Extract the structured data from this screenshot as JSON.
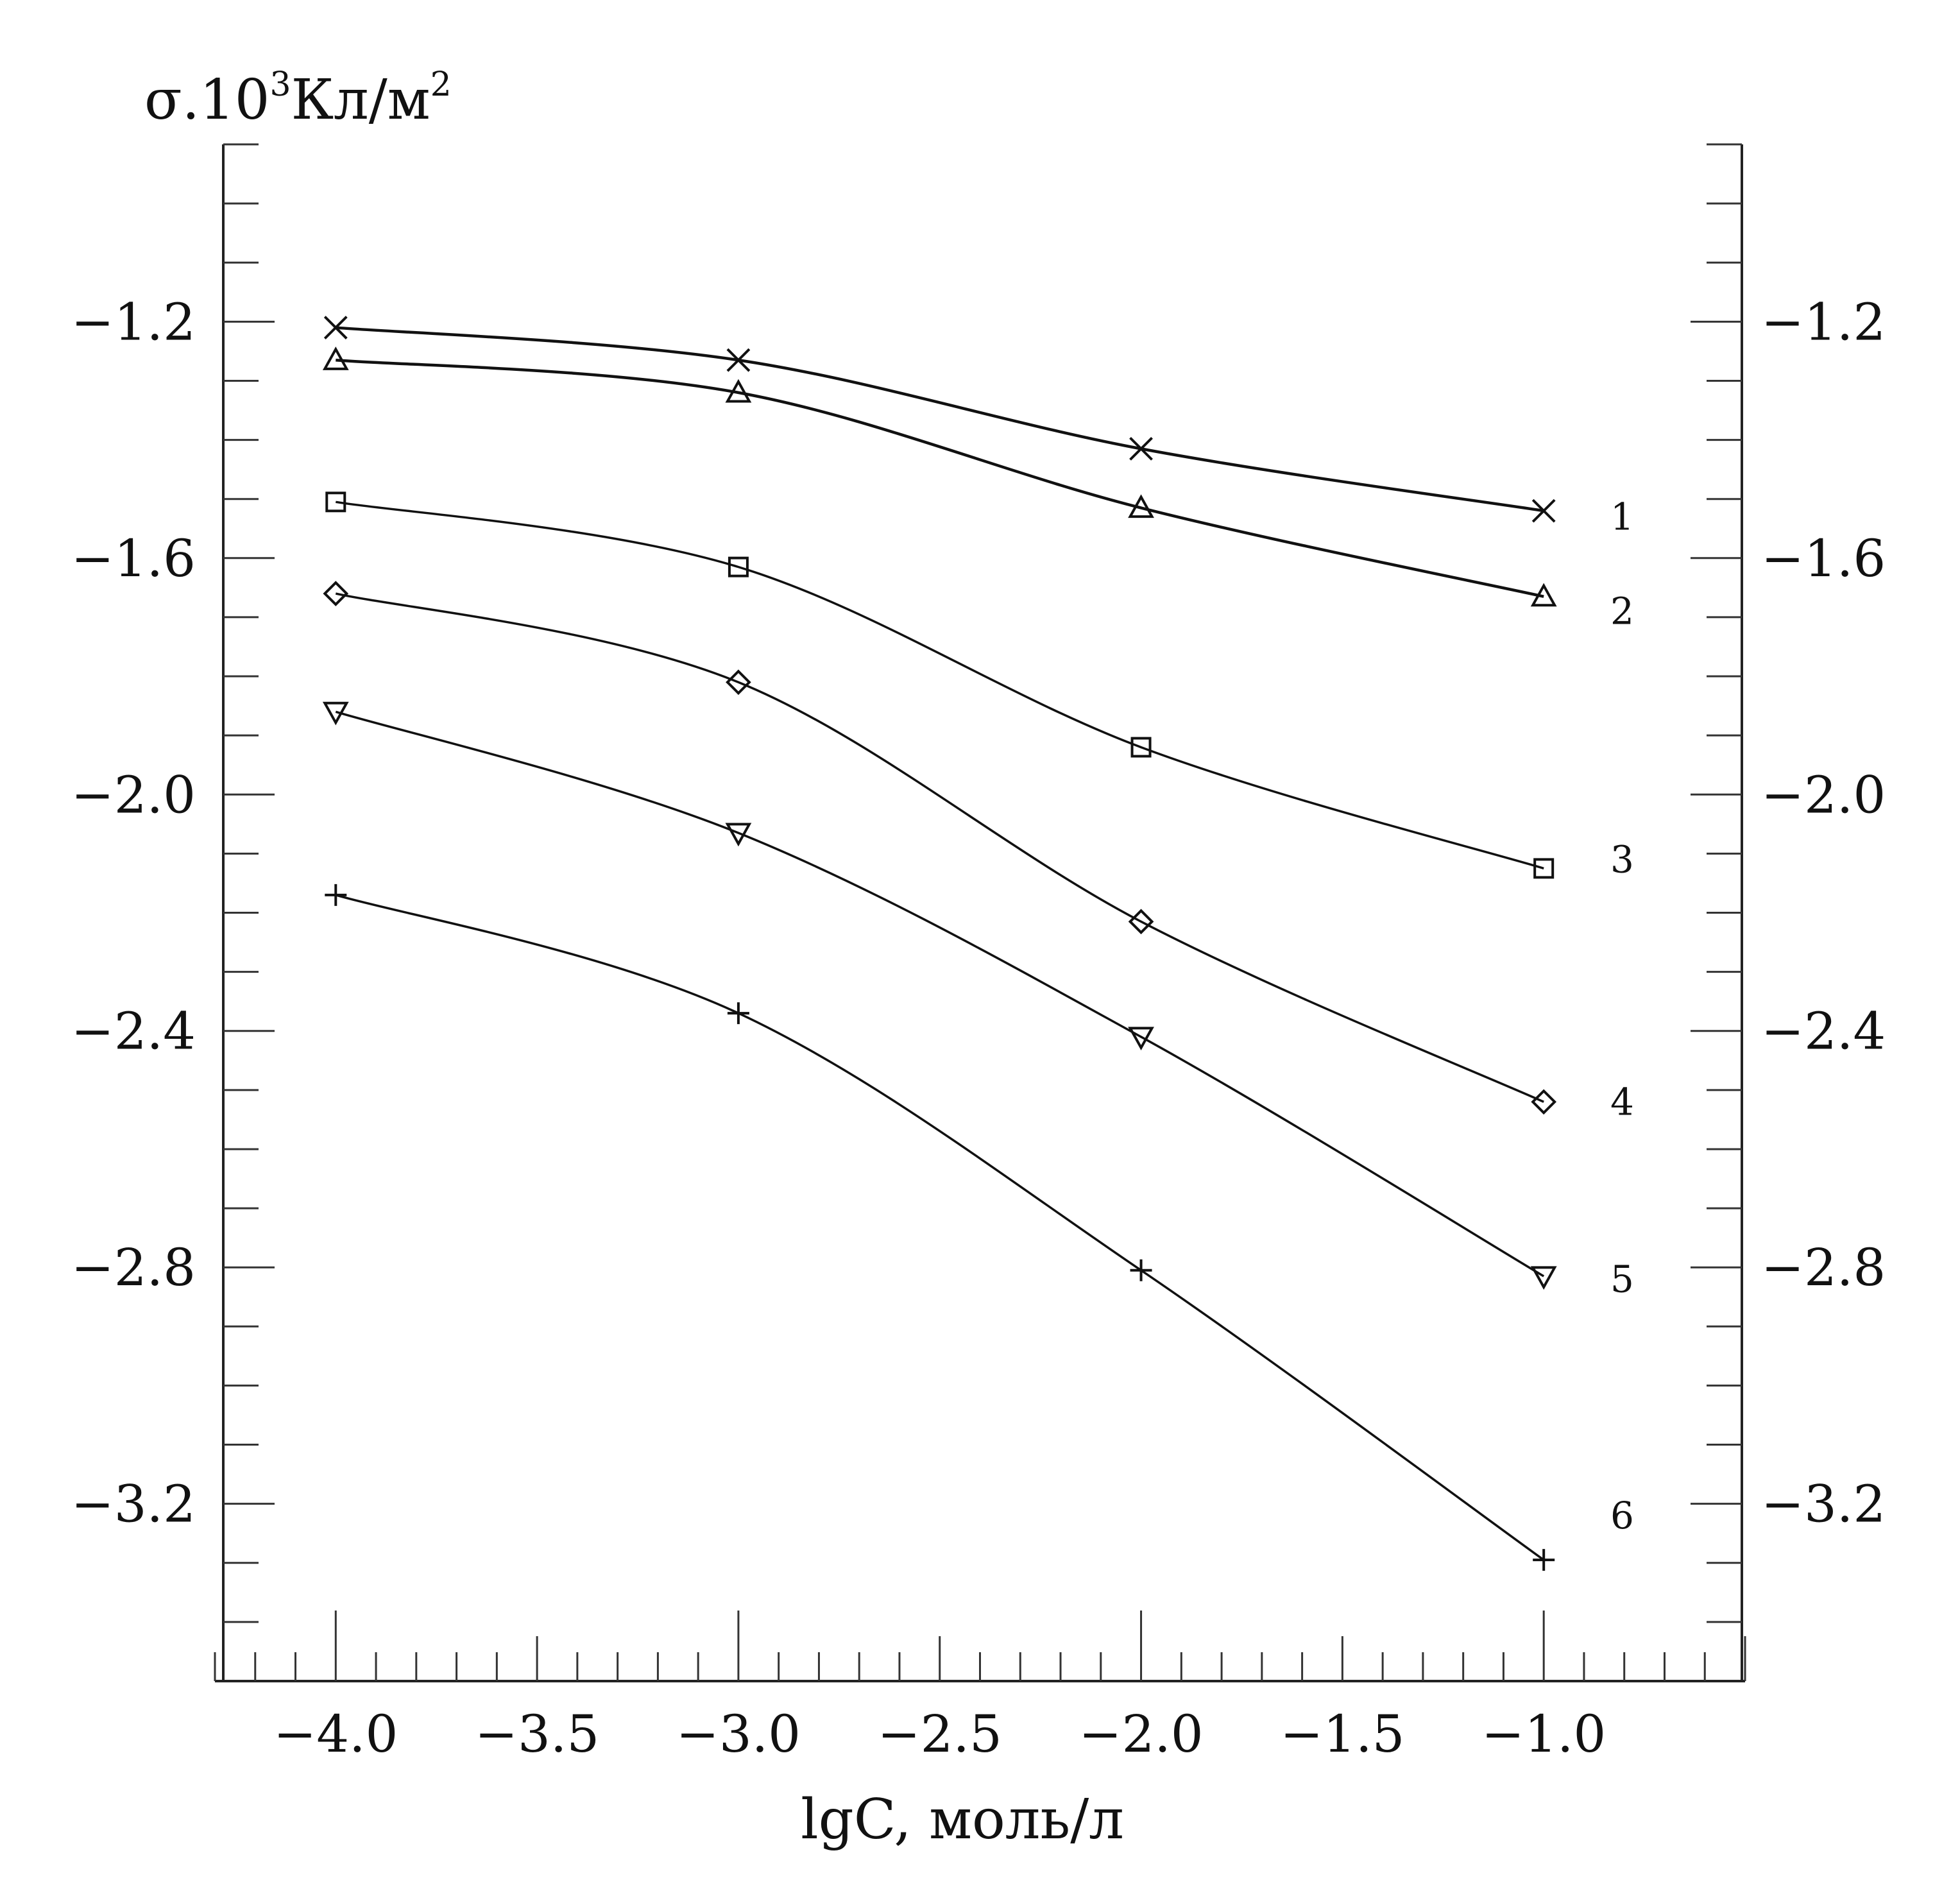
{
  "chart_data": {
    "type": "line",
    "ylabel_main": "σ.10",
    "ylabel_exp": "3",
    "ylabel_unit": "Кл/м",
    "ylabel_unit_exp": "2",
    "xlabel": "lgC,  моль/л",
    "xlim": [
      -4.3,
      -0.5
    ],
    "ylim": [
      -3.5,
      -0.9
    ],
    "x_ticks": [
      {
        "value": -4.0,
        "label": "−4.0"
      },
      {
        "value": -3.5,
        "label": "−3.5"
      },
      {
        "value": -3.0,
        "label": "−3.0"
      },
      {
        "value": -2.5,
        "label": "−2.5"
      },
      {
        "value": -2.0,
        "label": "−2.0"
      },
      {
        "value": -1.5,
        "label": "−1.5"
      },
      {
        "value": -1.0,
        "label": "−1.0"
      }
    ],
    "y_ticks_left": [
      {
        "value": -1.2,
        "label": "−1.2"
      },
      {
        "value": -1.6,
        "label": "−1.6"
      },
      {
        "value": -2.0,
        "label": "−2.0"
      },
      {
        "value": -2.4,
        "label": "−2.4"
      },
      {
        "value": -2.8,
        "label": "−2.8"
      },
      {
        "value": -3.2,
        "label": "−3.2"
      }
    ],
    "y_ticks_right": [
      {
        "value": -1.2,
        "label": "−1.2"
      },
      {
        "value": -1.6,
        "label": "−1.6"
      },
      {
        "value": -2.0,
        "label": "−2.0"
      },
      {
        "value": -2.4,
        "label": "−2.4"
      },
      {
        "value": -2.8,
        "label": "−2.8"
      },
      {
        "value": -3.2,
        "label": "−3.2"
      }
    ],
    "x": [
      -4.0,
      -3.0,
      -2.0,
      -1.0
    ],
    "series": [
      {
        "label": "1",
        "marker": "x",
        "values": [
          -1.21,
          -1.265,
          -1.415,
          -1.52
        ],
        "label_y": -1.53
      },
      {
        "label": "2",
        "marker": "triangle-up",
        "values": [
          -1.265,
          -1.32,
          -1.515,
          -1.665
        ],
        "label_y": -1.69
      },
      {
        "label": "3",
        "marker": "square",
        "values": [
          -1.505,
          -1.615,
          -1.92,
          -2.125
        ],
        "label_y": -2.11
      },
      {
        "label": "4",
        "marker": "diamond",
        "values": [
          -1.66,
          -1.81,
          -2.215,
          -2.52
        ],
        "label_y": -2.52
      },
      {
        "label": "5",
        "marker": "triangle-down",
        "values": [
          -1.86,
          -2.065,
          -2.41,
          -2.815
        ],
        "label_y": -2.82
      },
      {
        "label": "6",
        "marker": "plus",
        "values": [
          -2.17,
          -2.37,
          -2.805,
          -3.295
        ],
        "label_y": -3.22
      }
    ]
  }
}
